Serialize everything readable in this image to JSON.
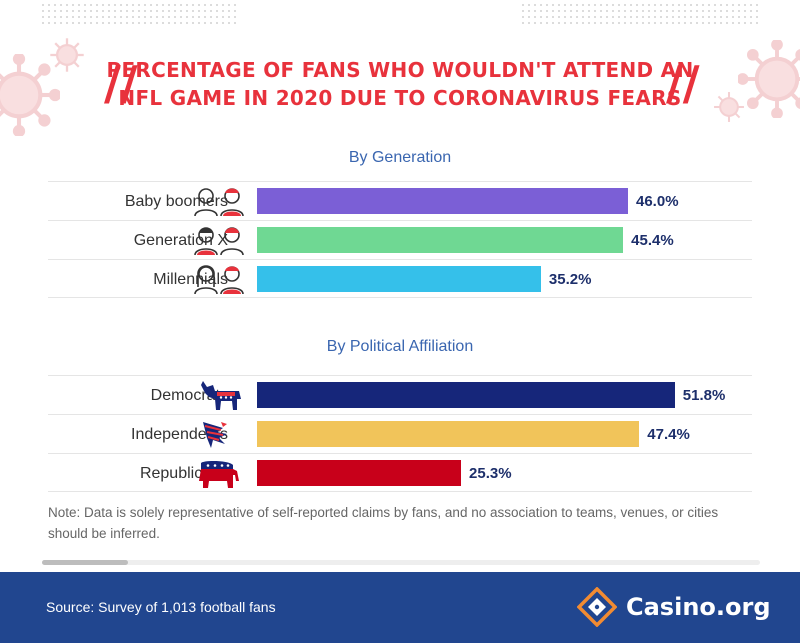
{
  "title": {
    "line1": "PERCENTAGE OF FANS WHO WOULDN'T ATTEND AN",
    "line2": "NFL GAME IN 2020 DUE TO CORONAVIRUS FEARS"
  },
  "colors": {
    "title": "#e8323c",
    "section_title": "#3a66b0",
    "value_text": "#1d2f6b",
    "footer_bg": "#21468f"
  },
  "chart_data": [
    {
      "type": "bar",
      "orientation": "horizontal",
      "title": "By Generation",
      "categories": [
        "Baby boomers",
        "Generation X",
        "Millennials"
      ],
      "values": [
        46.0,
        45.4,
        35.2
      ],
      "value_labels": [
        "46.0%",
        "45.4%",
        "35.2%"
      ],
      "colors": [
        "#7b5fd6",
        "#6fd893",
        "#35c0ea"
      ],
      "icons": [
        "elderly-couple-icon",
        "middle-aged-couple-icon",
        "young-couple-icon"
      ],
      "xlim": [
        0,
        60
      ],
      "grid": false
    },
    {
      "type": "bar",
      "orientation": "horizontal",
      "title": "By Political Affiliation",
      "categories": [
        "Democrats",
        "Independents",
        "Republicans"
      ],
      "values": [
        51.8,
        47.4,
        25.3
      ],
      "value_labels": [
        "51.8%",
        "47.4%",
        "25.3%"
      ],
      "colors": [
        "#16267a",
        "#f1c45a",
        "#c8001a"
      ],
      "icons": [
        "democrat-donkey-icon",
        "independent-eagle-icon",
        "republican-elephant-icon"
      ],
      "xlim": [
        0,
        60
      ],
      "grid": false
    }
  ],
  "note": "Note: Data is solely representative of self-reported claims by fans, and no association to teams, venues, or cities should be inferred.",
  "footer": {
    "source": "Source: Survey of 1,013 football fans",
    "brand": "Casino.org"
  }
}
